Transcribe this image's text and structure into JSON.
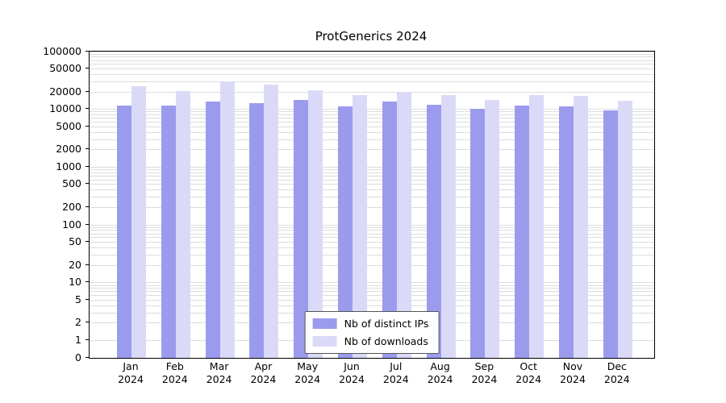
{
  "chart_data": {
    "type": "bar",
    "title": "ProtGenerics 2024",
    "categories": [
      "Jan 2024",
      "Feb 2024",
      "Mar 2024",
      "Apr 2024",
      "May 2024",
      "Jun 2024",
      "Jul 2024",
      "Aug 2024",
      "Sep 2024",
      "Oct 2024",
      "Nov 2024",
      "Dec 2024"
    ],
    "series": [
      {
        "name": "Nb of distinct IPs",
        "color": "#9b9bee",
        "values": [
          11500,
          11800,
          13800,
          13000,
          14500,
          11200,
          13500,
          12000,
          10200,
          11500,
          11300,
          9500
        ]
      },
      {
        "name": "Nb of downloads",
        "color": "#dadaf8",
        "values": [
          25000,
          20500,
          30000,
          27000,
          21500,
          17500,
          20000,
          17500,
          14500,
          17500,
          17000,
          14000
        ]
      }
    ],
    "yscale": "log",
    "ylim": [
      0,
      100000
    ],
    "yticks": [
      0,
      1,
      2,
      5,
      10,
      20,
      50,
      100,
      200,
      500,
      1000,
      2000,
      5000,
      10000,
      20000,
      50000,
      100000
    ],
    "grid": "horizontal",
    "grid_color": "#dcdcdc",
    "legend_position": "bottom-center-inside"
  }
}
